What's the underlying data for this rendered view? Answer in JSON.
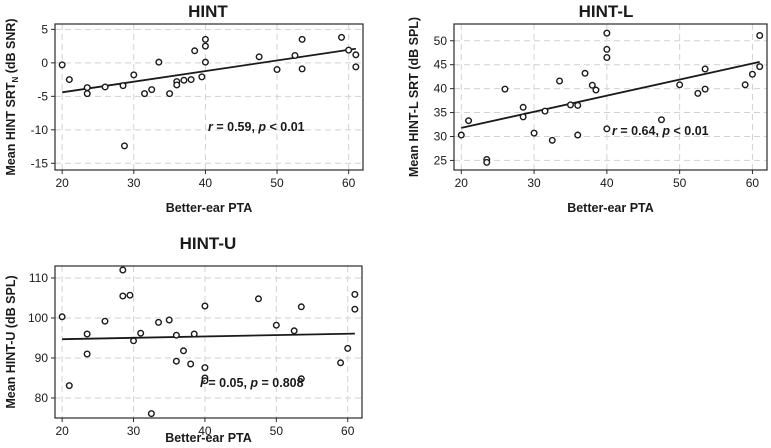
{
  "chart_data": [
    {
      "id": "hint",
      "type": "scatter",
      "title": "HINT",
      "xlabel": "Better-ear PTA",
      "ylabel": "Mean HINT SRT",
      "ylabel_sub": "N",
      "ylabel_tail": " (dB SNR)",
      "xlim": [
        19,
        62
      ],
      "ylim": [
        -16,
        5.8
      ],
      "xticks": [
        20,
        30,
        40,
        50,
        60
      ],
      "yticks": [
        5,
        0,
        -5,
        -10,
        -15
      ],
      "annotation": {
        "r_label": "r",
        "r_text": " = 0.59, ",
        "p_label": "p",
        "p_text": " < 0.01"
      },
      "fit": [
        [
          20,
          -4.4
        ],
        [
          61,
          2.1
        ]
      ],
      "points": [
        [
          20,
          -0.3
        ],
        [
          21,
          -2.5
        ],
        [
          23.5,
          -3.7
        ],
        [
          23.5,
          -4.6
        ],
        [
          26,
          -3.6
        ],
        [
          28.5,
          -3.4
        ],
        [
          28.7,
          -12.4
        ],
        [
          30,
          -1.8
        ],
        [
          31.5,
          -4.6
        ],
        [
          32.5,
          -4.0
        ],
        [
          33.5,
          0.1
        ],
        [
          35,
          -4.6
        ],
        [
          36,
          -2.8
        ],
        [
          36,
          -3.3
        ],
        [
          37,
          -2.6
        ],
        [
          38,
          -2.5
        ],
        [
          38.5,
          1.8
        ],
        [
          39.5,
          -2.1
        ],
        [
          40,
          3.5
        ],
        [
          40,
          2.5
        ],
        [
          40,
          0.1
        ],
        [
          47.5,
          0.9
        ],
        [
          50,
          -1.0
        ],
        [
          52.5,
          1.1
        ],
        [
          53.5,
          3.5
        ],
        [
          53.5,
          -0.9
        ],
        [
          59,
          3.8
        ],
        [
          60,
          1.9
        ],
        [
          61,
          1.2
        ],
        [
          61,
          -0.6
        ]
      ]
    },
    {
      "id": "hintl",
      "type": "scatter",
      "title": "HINT-L",
      "xlabel": "Better-ear PTA",
      "ylabel": "Mean HINT-L SRT (dB SPL)",
      "xlim": [
        19,
        62
      ],
      "ylim": [
        23,
        53.5
      ],
      "xticks": [
        20,
        30,
        40,
        50,
        60
      ],
      "yticks": [
        50,
        45,
        40,
        35,
        30,
        25
      ],
      "annotation": {
        "r_label": "r",
        "r_text": " = 0.64, ",
        "p_label": "p",
        "p_text": " < 0.01"
      },
      "fit": [
        [
          20,
          31.8
        ],
        [
          61,
          45.6
        ]
      ],
      "points": [
        [
          20,
          30.3
        ],
        [
          21,
          33.3
        ],
        [
          23.5,
          25.2
        ],
        [
          23.5,
          24.6
        ],
        [
          26,
          39.9
        ],
        [
          28.5,
          36.1
        ],
        [
          28.5,
          34.1
        ],
        [
          30,
          30.7
        ],
        [
          31.5,
          35.3
        ],
        [
          32.5,
          29.2
        ],
        [
          33.5,
          41.6
        ],
        [
          35,
          36.6
        ],
        [
          36,
          36.5
        ],
        [
          36,
          30.3
        ],
        [
          37,
          43.2
        ],
        [
          38,
          40.7
        ],
        [
          38.5,
          39.7
        ],
        [
          40,
          51.6
        ],
        [
          40,
          48.2
        ],
        [
          40,
          46.5
        ],
        [
          40,
          31.6
        ],
        [
          47.5,
          33.5
        ],
        [
          50,
          40.8
        ],
        [
          52.5,
          39.0
        ],
        [
          53.5,
          44.1
        ],
        [
          53.5,
          39.9
        ],
        [
          59,
          40.8
        ],
        [
          60,
          43.0
        ],
        [
          61,
          51.1
        ],
        [
          61,
          44.6
        ]
      ]
    },
    {
      "id": "hintu",
      "type": "scatter",
      "title": "HINT-U",
      "xlabel": "Better-ear PTA",
      "ylabel": "Mean HINT-U (dB SPL)",
      "xlim": [
        19,
        62
      ],
      "ylim": [
        75,
        113
      ],
      "xticks": [
        20,
        30,
        40,
        50,
        60
      ],
      "yticks": [
        110,
        100,
        90,
        80
      ],
      "annotation": {
        "r_label": "r",
        "r_text": " = 0.05, ",
        "p_label": "p",
        "p_text": " = 0.808"
      },
      "fit": [
        [
          20,
          94.7
        ],
        [
          61,
          96.1
        ]
      ],
      "points": [
        [
          20,
          100.3
        ],
        [
          21,
          83.1
        ],
        [
          23.5,
          96.0
        ],
        [
          23.5,
          91.0
        ],
        [
          26,
          99.2
        ],
        [
          28.5,
          112.0
        ],
        [
          28.5,
          105.5
        ],
        [
          29.5,
          105.7
        ],
        [
          30,
          94.3
        ],
        [
          31,
          96.2
        ],
        [
          32.5,
          76.1
        ],
        [
          33.5,
          98.9
        ],
        [
          35,
          99.5
        ],
        [
          36,
          95.7
        ],
        [
          36,
          89.2
        ],
        [
          37,
          91.8
        ],
        [
          38,
          88.5
        ],
        [
          38.5,
          96.0
        ],
        [
          40,
          103.0
        ],
        [
          40,
          87.6
        ],
        [
          40,
          85.0
        ],
        [
          40,
          84.3
        ],
        [
          47.5,
          104.8
        ],
        [
          50,
          98.2
        ],
        [
          52.5,
          96.8
        ],
        [
          53.5,
          102.8
        ],
        [
          53.5,
          84.8
        ],
        [
          59,
          88.8
        ],
        [
          60,
          92.4
        ],
        [
          61,
          105.9
        ],
        [
          61,
          102.2
        ]
      ]
    }
  ]
}
